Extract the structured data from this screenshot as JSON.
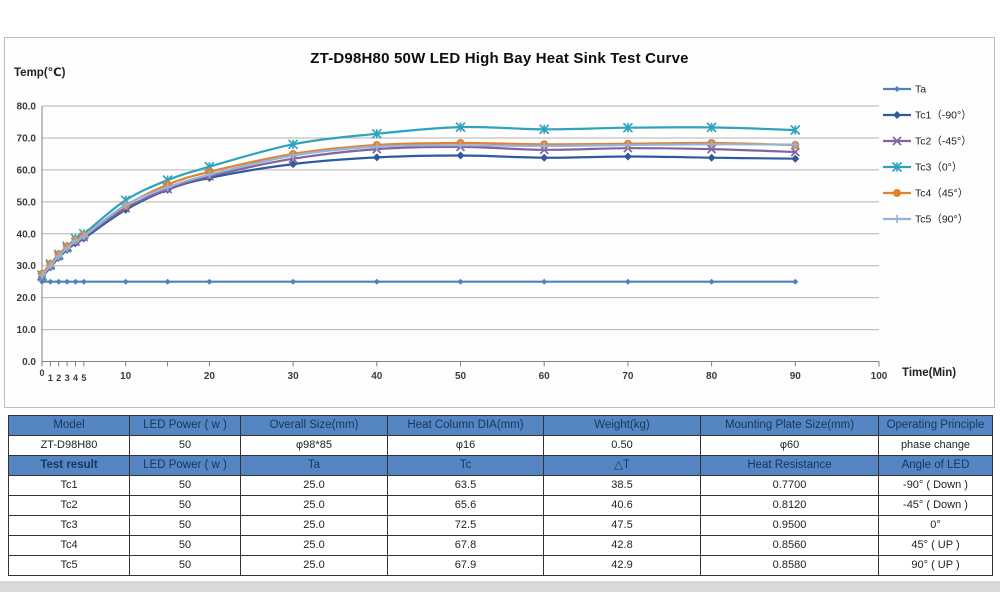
{
  "chart_data": {
    "type": "line",
    "title": "ZT-D98H80 50W LED High Bay Heat Sink Test Curve",
    "xlabel": "Time(Min)",
    "ylabel": "Temp(℃)",
    "xlim": [
      0,
      100
    ],
    "ylim": [
      0,
      80
    ],
    "grid": true,
    "legend_position": "right",
    "y_ticks": [
      0,
      10,
      20,
      30,
      40,
      50,
      60,
      70,
      80
    ],
    "x_major_ticks": [
      10,
      20,
      30,
      40,
      50,
      60,
      70,
      80,
      90,
      100
    ],
    "x_minor_labels": [
      0,
      1,
      2,
      3,
      4,
      5
    ],
    "x_unlabeled_ticks": [
      15
    ],
    "x": [
      0,
      1,
      2,
      3,
      4,
      5,
      10,
      15,
      20,
      30,
      40,
      50,
      60,
      70,
      80,
      90
    ],
    "series": [
      {
        "name": "Ta",
        "color": "#4f81bd",
        "marker": "diamond",
        "marker_size": 3,
        "values": [
          25.0,
          25.0,
          25.0,
          25.0,
          25.0,
          25.0,
          25.0,
          25.0,
          25.0,
          25.0,
          25.0,
          25.0,
          25.0,
          25.0,
          25.0,
          25.0
        ]
      },
      {
        "name": "Tc1（-90°）",
        "color": "#2f5b9d",
        "marker": "diamond",
        "marker_size": 4,
        "values": [
          26.5,
          29.5,
          32.5,
          35.0,
          37.0,
          38.5,
          47.5,
          53.8,
          57.5,
          61.8,
          63.9,
          64.5,
          63.8,
          64.2,
          63.8,
          63.5
        ]
      },
      {
        "name": "Tc2（-45°）",
        "color": "#8064a2",
        "marker": "x",
        "marker_size": 4,
        "values": [
          26.5,
          30.0,
          33.0,
          35.5,
          37.5,
          39.0,
          48.0,
          54.0,
          58.0,
          63.5,
          66.5,
          67.2,
          66.3,
          66.8,
          66.5,
          65.6
        ]
      },
      {
        "name": "Tc3（0°）",
        "color": "#2fa3bd",
        "marker": "asterisk",
        "marker_size": 4.5,
        "values": [
          27.0,
          30.5,
          33.5,
          36.0,
          38.5,
          40.0,
          50.5,
          56.8,
          61.0,
          68.0,
          71.3,
          73.4,
          72.7,
          73.2,
          73.3,
          72.5
        ]
      },
      {
        "name": "Tc4（45°）",
        "color": "#e2822e",
        "marker": "circle",
        "marker_size": 4,
        "values": [
          27.5,
          30.5,
          33.5,
          36.0,
          38.0,
          39.5,
          48.8,
          55.4,
          59.4,
          65.0,
          67.8,
          68.4,
          68.0,
          68.2,
          68.4,
          67.8
        ]
      },
      {
        "name": "Tc5（90°）",
        "color": "#95b3d7",
        "marker": "plus",
        "marker_size": 4,
        "values": [
          27.0,
          30.0,
          33.0,
          35.5,
          37.8,
          39.2,
          49.0,
          54.5,
          58.5,
          64.5,
          67.3,
          67.7,
          67.5,
          67.8,
          68.0,
          67.9
        ]
      }
    ]
  },
  "table": {
    "header_bg": "#5586c3",
    "header_text": "#17365d",
    "result_label_color": "#ff0000",
    "spec_header": [
      "Model",
      "LED Power ( w )",
      "Overall Size(mm)",
      "Heat Column DIA(mm)",
      "Weight(kg)",
      "Mounting Plate Size(mm)",
      "Operating Principle"
    ],
    "spec_row": [
      "ZT-D98H80",
      "50",
      "φ98*85",
      "φ16",
      "0.50",
      "φ60",
      "phase change"
    ],
    "result_header": [
      "Test result",
      "LED Power ( w )",
      "Ta",
      "Tc",
      "△T",
      "Heat Resistance",
      "Angle of LED"
    ],
    "result_rows": [
      [
        "Tc1",
        "50",
        "25.0",
        "63.5",
        "38.5",
        "0.7700",
        "-90° ( Down )"
      ],
      [
        "Tc2",
        "50",
        "25.0",
        "65.6",
        "40.6",
        "0.8120",
        "-45° ( Down )"
      ],
      [
        "Tc3",
        "50",
        "25.0",
        "72.5",
        "47.5",
        "0.9500",
        "0°"
      ],
      [
        "Tc4",
        "50",
        "25.0",
        "67.8",
        "42.8",
        "0.8560",
        "45° ( UP )"
      ],
      [
        "Tc5",
        "50",
        "25.0",
        "67.9",
        "42.9",
        "0.8580",
        "90° ( UP )"
      ]
    ]
  }
}
